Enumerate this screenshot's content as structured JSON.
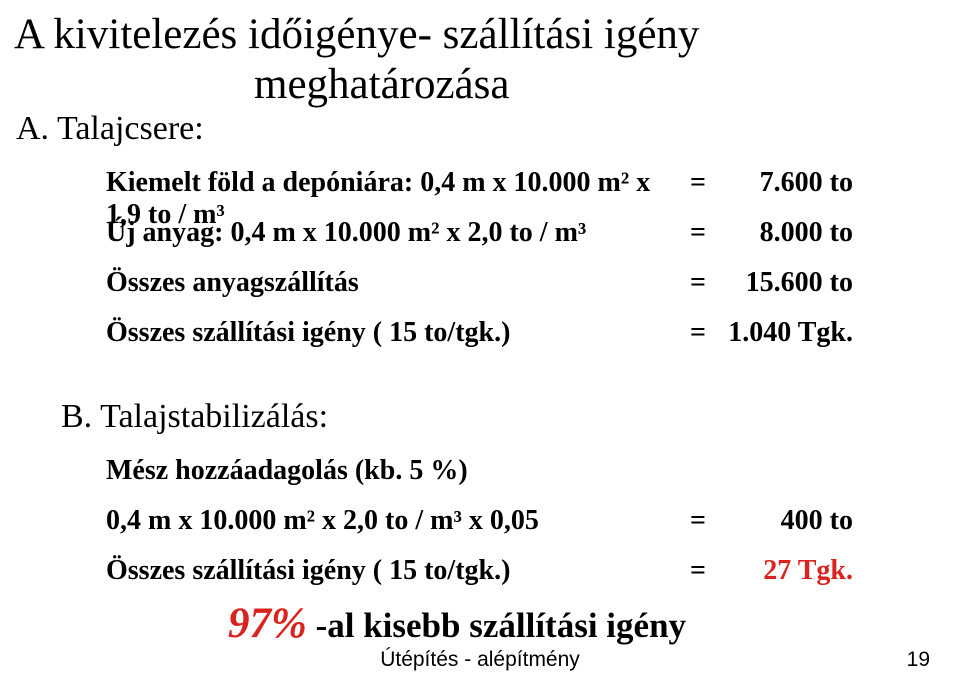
{
  "title": {
    "line1": "A kivitelezés időigénye- szállítási igény",
    "line2": "meghatározása"
  },
  "sectionA": {
    "label": "A. Talajcsere:",
    "rows": [
      {
        "desc": "Kiemelt föld a depóniára: 0,4 m x 10.000 m² x 1,9 to / m³",
        "eq": "=",
        "val": "7.600 to"
      },
      {
        "desc": "Új anyag: 0,4 m x 10.000 m² x 2,0 to / m³",
        "eq": "=",
        "val": "8.000 to"
      },
      {
        "desc": "Összes anyagszállítás",
        "eq": "=",
        "val": "15.600 to"
      },
      {
        "desc": "Összes szállítási igény   ( 15 to/tgk.)",
        "eq": "=",
        "val": "1.040 Tgk."
      }
    ]
  },
  "sectionB": {
    "label": "B. Talajstabilizálás:",
    "rows": [
      {
        "desc": "Mész hozzáadagolás (kb. 5 %)",
        "eq": "",
        "val": ""
      },
      {
        "desc": "0,4 m x 10.000 m² x 2,0 to / m³ x 0,05",
        "eq": "=",
        "val": "400 to"
      },
      {
        "desc": "Összes szállítási igény   ( 15 to/tgk.)",
        "eq": "=",
        "val": "27 Tgk."
      }
    ]
  },
  "conclusion": {
    "pct": "97%",
    "rest": " -al kisebb szállítási igény"
  },
  "footer": {
    "center": "Útépítés - alépítmény",
    "page": "19"
  },
  "colors": {
    "accent": "#d9231f",
    "text": "#000000",
    "background": "#ffffff"
  },
  "typography": {
    "title_fontsize_pt": 32,
    "section_fontsize_pt": 26,
    "body_fontsize_pt": 21,
    "conclusion_pct_fontsize_pt": 32,
    "footer_fontsize_pt": 16,
    "font_family_body": "Times New Roman",
    "font_family_footer": "Arial"
  }
}
